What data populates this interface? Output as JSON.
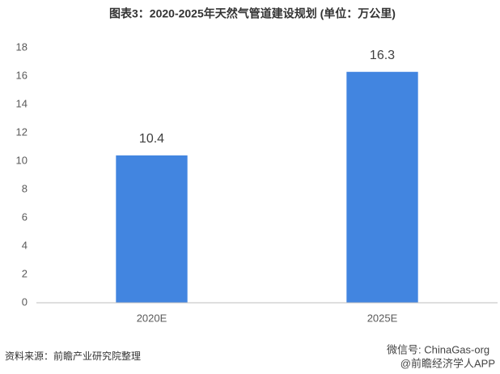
{
  "chart_data": {
    "type": "bar",
    "title": "图表3：2020-2025年天然气管道建设规划 (单位：万公里)",
    "categories": [
      "2020E",
      "2025E"
    ],
    "values": [
      10.4,
      16.3
    ],
    "color": "#4285e0",
    "ylim": [
      0,
      18
    ],
    "yticks": [
      0,
      2,
      4,
      6,
      8,
      10,
      12,
      14,
      16,
      18
    ],
    "grid": false,
    "source": "资料来源：前瞻产业研究院整理",
    "watermarks": [
      "微信号: ChinaGas-org",
      "@前瞻经济学人APP"
    ]
  }
}
